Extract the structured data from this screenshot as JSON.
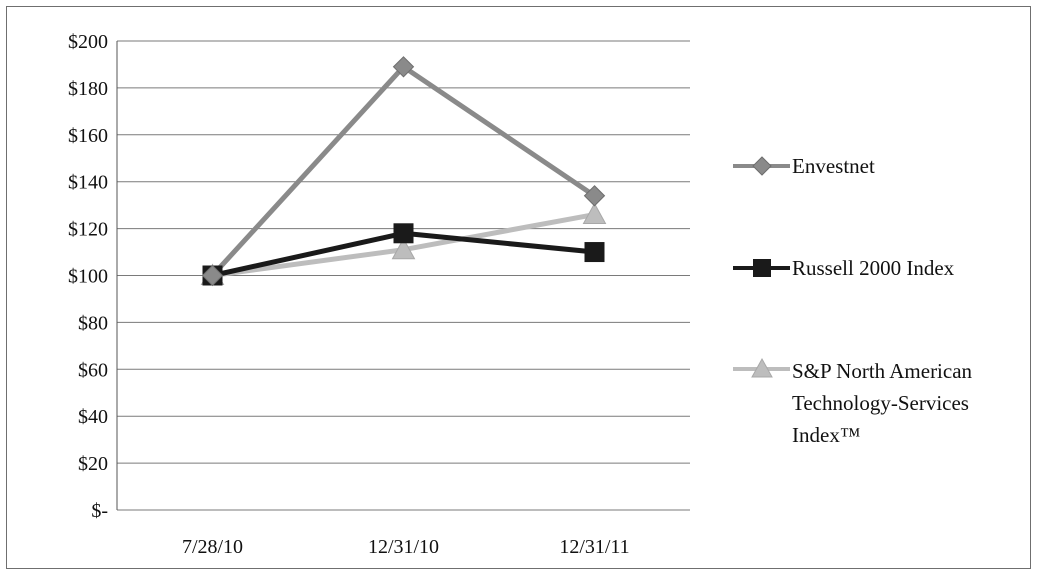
{
  "chart_data": {
    "type": "line",
    "title": "",
    "xlabel": "",
    "ylabel": "",
    "categories": [
      "7/28/10",
      "12/31/10",
      "12/31/11"
    ],
    "ylim": [
      0,
      200
    ],
    "y_ticks": [
      {
        "value": 0,
        "label": "$-"
      },
      {
        "value": 20,
        "label": "$20"
      },
      {
        "value": 40,
        "label": "$40"
      },
      {
        "value": 60,
        "label": "$60"
      },
      {
        "value": 80,
        "label": "$80"
      },
      {
        "value": 100,
        "label": "$100"
      },
      {
        "value": 120,
        "label": "$120"
      },
      {
        "value": 140,
        "label": "$140"
      },
      {
        "value": 160,
        "label": "$160"
      },
      {
        "value": 180,
        "label": "$180"
      },
      {
        "value": 200,
        "label": "$200"
      }
    ],
    "grid": true,
    "legend_position": "right",
    "series": [
      {
        "name": "Envestnet",
        "values": [
          100,
          189,
          134
        ],
        "color": "#8a8a8a",
        "marker": "diamond"
      },
      {
        "name": "Russell 2000 Index",
        "values": [
          100,
          118,
          110
        ],
        "color": "#1a1a1a",
        "marker": "square"
      },
      {
        "name": "S&P North American Technology-Services Index™",
        "values": [
          100,
          111,
          126
        ],
        "color": "#bdbdbd",
        "marker": "triangle"
      }
    ]
  },
  "legend": {
    "envestnet": "Envestnet",
    "russell": "Russell 2000 Index",
    "sp_line1": "S&P North American",
    "sp_line2": "Technology-Services",
    "sp_line3": "Index™"
  }
}
